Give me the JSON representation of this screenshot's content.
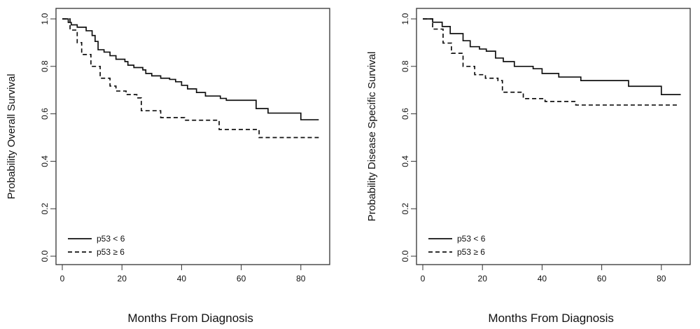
{
  "chart_data": [
    {
      "type": "line",
      "title": "",
      "xlabel": "Months From Diagnosis",
      "ylabel": "Probability Overall Survival",
      "xlim": [
        0,
        86
      ],
      "ylim": [
        0,
        1
      ],
      "xticks": [
        "0",
        "20",
        "40",
        "60",
        "80"
      ],
      "yticks": [
        "0.0",
        "0.2",
        "0.4",
        "0.6",
        "0.8",
        "1.0"
      ],
      "legend_position": "bottom-left",
      "series": [
        {
          "name": "p53 < 6",
          "style": "solid",
          "points": [
            [
              0,
              1.0
            ],
            [
              2,
              0.985
            ],
            [
              3,
              0.975
            ],
            [
              5,
              0.965
            ],
            [
              8,
              0.95
            ],
            [
              10,
              0.93
            ],
            [
              11,
              0.905
            ],
            [
              12,
              0.87
            ],
            [
              14,
              0.86
            ],
            [
              16,
              0.845
            ],
            [
              18,
              0.83
            ],
            [
              21,
              0.82
            ],
            [
              22,
              0.805
            ],
            [
              24,
              0.795
            ],
            [
              27,
              0.785
            ],
            [
              28,
              0.77
            ],
            [
              30,
              0.76
            ],
            [
              33,
              0.75
            ],
            [
              36,
              0.745
            ],
            [
              38,
              0.735
            ],
            [
              40,
              0.72
            ],
            [
              42,
              0.705
            ],
            [
              45,
              0.69
            ],
            [
              48,
              0.675
            ],
            [
              53,
              0.665
            ],
            [
              55,
              0.657
            ],
            [
              65,
              0.622
            ],
            [
              69,
              0.603
            ],
            [
              80,
              0.575
            ],
            [
              86,
              0.575
            ]
          ]
        },
        {
          "name": "p53 ≥ 6",
          "style": "dashed",
          "points": [
            [
              0,
              1.0
            ],
            [
              2.6,
              0.953
            ],
            [
              5,
              0.9
            ],
            [
              6.5,
              0.85
            ],
            [
              9.6,
              0.8
            ],
            [
              12.7,
              0.75
            ],
            [
              16,
              0.717
            ],
            [
              18,
              0.696
            ],
            [
              21.4,
              0.681
            ],
            [
              25,
              0.667
            ],
            [
              26.5,
              0.613
            ],
            [
              33,
              0.584
            ],
            [
              41,
              0.573
            ],
            [
              52.6,
              0.534
            ],
            [
              66,
              0.5
            ],
            [
              86,
              0.5
            ]
          ]
        }
      ]
    },
    {
      "type": "line",
      "title": "",
      "xlabel": "Months From Diagnosis",
      "ylabel": "Probability Disease Specific Survival",
      "xlim": [
        0,
        86
      ],
      "ylim": [
        0,
        1
      ],
      "xticks": [
        "0",
        "20",
        "40",
        "60",
        "80"
      ],
      "yticks": [
        "0.0",
        "0.2",
        "0.4",
        "0.6",
        "0.8",
        "1.0"
      ],
      "legend_position": "bottom-left",
      "series": [
        {
          "name": "p53 < 6",
          "style": "solid",
          "points": [
            [
              0,
              1.0
            ],
            [
              3.3,
              0.986
            ],
            [
              6.5,
              0.968
            ],
            [
              9.2,
              0.938
            ],
            [
              13.5,
              0.908
            ],
            [
              15.9,
              0.883
            ],
            [
              19,
              0.873
            ],
            [
              21.3,
              0.864
            ],
            [
              24.4,
              0.835
            ],
            [
              27,
              0.82
            ],
            [
              30.7,
              0.8
            ],
            [
              37,
              0.79
            ],
            [
              40,
              0.77
            ],
            [
              45.6,
              0.755
            ],
            [
              53,
              0.74
            ],
            [
              69,
              0.716
            ],
            [
              80,
              0.681
            ],
            [
              86.5,
              0.681
            ]
          ]
        },
        {
          "name": "p53 ≥ 6",
          "style": "dashed",
          "points": [
            [
              0,
              1.0
            ],
            [
              3.3,
              0.957
            ],
            [
              6.8,
              0.898
            ],
            [
              9.6,
              0.855
            ],
            [
              13.5,
              0.8
            ],
            [
              17.4,
              0.765
            ],
            [
              21,
              0.75
            ],
            [
              25.2,
              0.74
            ],
            [
              26.7,
              0.691
            ],
            [
              33.7,
              0.664
            ],
            [
              41,
              0.652
            ],
            [
              51.3,
              0.637
            ],
            [
              86,
              0.637
            ]
          ]
        }
      ]
    }
  ]
}
